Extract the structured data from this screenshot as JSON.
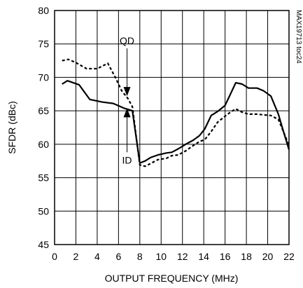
{
  "chart_data": {
    "type": "line",
    "title": "",
    "xlabel": "OUTPUT FREQUENCY (MHz)",
    "ylabel": "SFDR (dBc)",
    "xlim": [
      0,
      22
    ],
    "ylim": [
      45,
      80
    ],
    "xticks": [
      0,
      2,
      4,
      6,
      8,
      10,
      12,
      14,
      16,
      18,
      20,
      22
    ],
    "yticks": [
      45,
      50,
      55,
      60,
      65,
      70,
      75,
      80
    ],
    "grid": true,
    "series": [
      {
        "name": "ID",
        "style": "solid",
        "x": [
          0.7,
          1.2,
          2.3,
          3.3,
          4.5,
          5.5,
          6.5,
          7.3,
          8.0,
          8.5,
          9.0,
          9.7,
          10.5,
          11.0,
          11.6,
          12.3,
          13.0,
          13.6,
          14.1,
          14.7,
          15.3,
          16.0,
          16.5,
          17.0,
          17.6,
          18.2,
          19.0,
          19.6,
          20.3,
          21.0,
          21.5,
          22.0
        ],
        "y": [
          69.0,
          69.5,
          68.9,
          66.7,
          66.3,
          66.1,
          65.4,
          65.0,
          57.2,
          57.5,
          58.0,
          58.4,
          58.7,
          58.8,
          59.3,
          60.0,
          60.6,
          61.3,
          62.3,
          64.3,
          64.9,
          65.8,
          67.5,
          69.2,
          69.0,
          68.4,
          68.4,
          68.0,
          67.2,
          64.5,
          61.8,
          59.2
        ]
      },
      {
        "name": "QD",
        "style": "dashed",
        "x": [
          0.7,
          1.3,
          2.0,
          3.0,
          4.0,
          5.0,
          5.7,
          6.3,
          6.9,
          7.3,
          8.0,
          8.5,
          9.0,
          9.7,
          10.5,
          11.0,
          11.6,
          12.3,
          13.0,
          13.6,
          14.1,
          14.7,
          15.3,
          16.0,
          16.5,
          17.0,
          17.6,
          18.2,
          19.0,
          19.6,
          20.3,
          21.0,
          21.5,
          22.0
        ],
        "y": [
          72.5,
          72.7,
          72.2,
          71.3,
          71.3,
          72.1,
          70.0,
          68.0,
          66.8,
          65.6,
          56.9,
          56.7,
          57.1,
          57.7,
          57.9,
          58.3,
          58.4,
          59.0,
          59.8,
          60.4,
          60.7,
          61.9,
          63.3,
          64.2,
          64.8,
          65.3,
          64.8,
          64.5,
          64.5,
          64.4,
          64.3,
          63.7,
          61.8,
          59.8
        ]
      }
    ],
    "annotations": [
      {
        "text": "QD",
        "at_x": 6.8,
        "at_y": 67.2,
        "direction": "down"
      },
      {
        "text": "ID",
        "at_x": 6.8,
        "at_y": 65.4,
        "direction": "up"
      }
    ],
    "figure_code": "MAX19713 toc24"
  }
}
